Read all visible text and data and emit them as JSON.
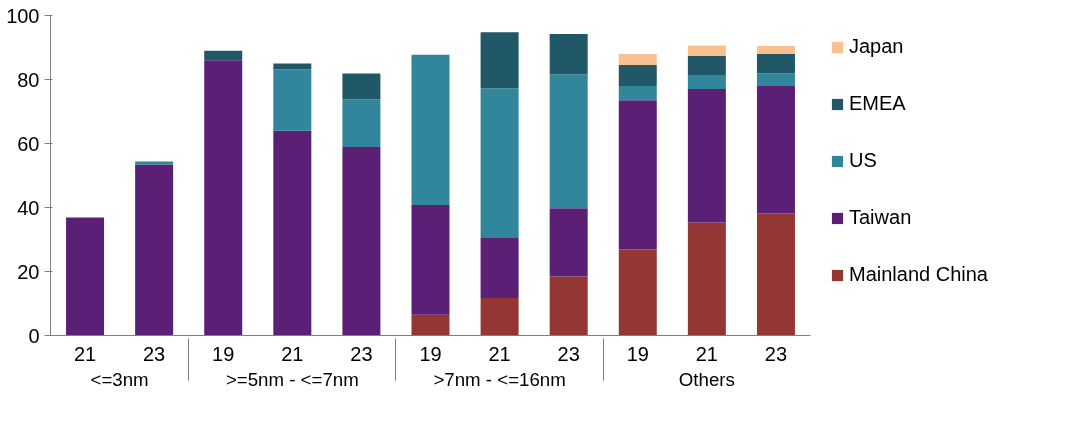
{
  "chart_data": {
    "type": "bar",
    "stacked": true,
    "categories": [
      "21",
      "23",
      "19",
      "21",
      "23",
      "19",
      "21",
      "23",
      "19",
      "21",
      "23"
    ],
    "annotations": [
      "<=3nm",
      ">=5nm - <=7nm",
      ">7nm - <=16nm",
      "Others"
    ],
    "series": [
      {
        "name": "Mainland China",
        "color": "#943634",
        "values": [
          0,
          0,
          0,
          0,
          0,
          6.5,
          11.7,
          18.4,
          26.9,
          35.3,
          38.2
        ]
      },
      {
        "name": "Taiwan",
        "color": "#5b1f75",
        "values": [
          36.9,
          53.4,
          86,
          64,
          58.9,
          34.3,
          19,
          21.4,
          46.6,
          41.7,
          39.8
        ]
      },
      {
        "name": "US",
        "color": "#31869b",
        "values": [
          0,
          1,
          0,
          19.2,
          14.9,
          46.9,
          46.6,
          41.8,
          4.5,
          4.2,
          3.9
        ]
      },
      {
        "name": "EMEA",
        "color": "#215868",
        "values": [
          0,
          0,
          3,
          1.8,
          8.1,
          0,
          17.5,
          12.6,
          6.5,
          6.2,
          6.1
        ]
      },
      {
        "name": "Japan",
        "color": "#fac090",
        "values": [
          0,
          0,
          0,
          0,
          0,
          0,
          0,
          0,
          3.5,
          3.2,
          2.5
        ]
      }
    ],
    "ylim": [
      0,
      100
    ],
    "yticks": [
      0,
      20,
      40,
      60,
      80,
      100
    ],
    "grid": false,
    "legend": "right"
  }
}
